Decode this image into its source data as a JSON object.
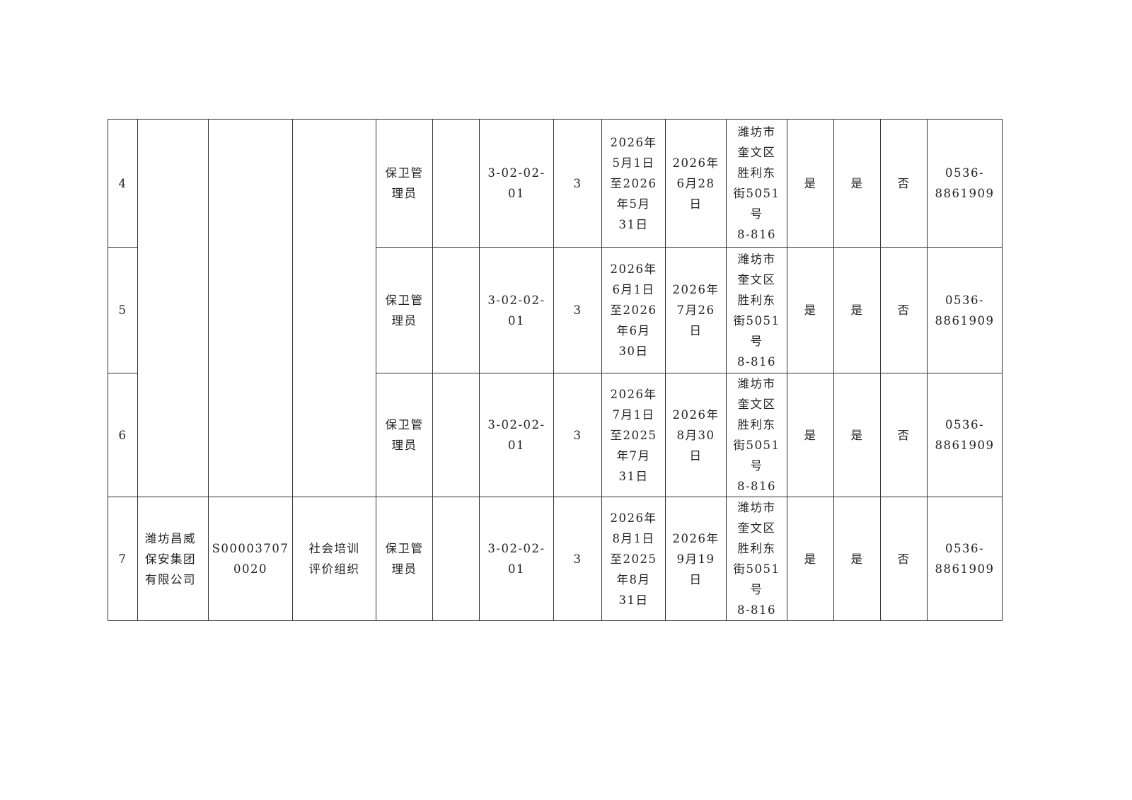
{
  "table": {
    "rows": [
      {
        "no": "4",
        "occupation": "保卫管\n理员",
        "extra": "",
        "code": "3-02-02-\n01",
        "level": "3",
        "train_period": "2026年\n5月1日\n至2026\n年5月\n31日",
        "exam_date": "2026年\n6月28\n日",
        "address": "潍坊市\n奎文区\n胜利东\n街5051\n号\n8-816",
        "c1": "是",
        "c2": "是",
        "c3": "否",
        "phone": "0536-\n8861909"
      },
      {
        "no": "5",
        "occupation": "保卫管\n理员",
        "extra": "",
        "code": "3-02-02-\n01",
        "level": "3",
        "train_period": "2026年\n6月1日\n至2026\n年6月\n30日",
        "exam_date": "2026年\n7月26\n日",
        "address": "潍坊市\n奎文区\n胜利东\n街5051\n号\n8-816",
        "c1": "是",
        "c2": "是",
        "c3": "否",
        "phone": "0536-\n8861909"
      },
      {
        "no": "6",
        "occupation": "保卫管\n理员",
        "extra": "",
        "code": "3-02-02-\n01",
        "level": "3",
        "train_period": "2026年\n7月1日\n至2025\n年7月\n31日",
        "exam_date": "2026年\n8月30\n日",
        "address": "潍坊市\n奎文区\n胜利东\n街5051\n号\n8-816",
        "c1": "是",
        "c2": "是",
        "c3": "否",
        "phone": "0536-\n8861909"
      },
      {
        "no": "7",
        "org": "潍坊昌威\n保安集团\n有限公司",
        "org_code": "S00003707\n0020",
        "org_type": "社会培训\n评价组织",
        "occupation": "保卫管\n理员",
        "extra": "",
        "code": "3-02-02-\n01",
        "level": "3",
        "train_period": "2026年\n8月1日\n至2025\n年8月\n31日",
        "exam_date": "2026年\n9月19\n日",
        "address": "潍坊市\n奎文区\n胜利东\n街5051\n号\n8-816",
        "c1": "是",
        "c2": "是",
        "c3": "否",
        "phone": "0536-\n8861909"
      }
    ]
  }
}
